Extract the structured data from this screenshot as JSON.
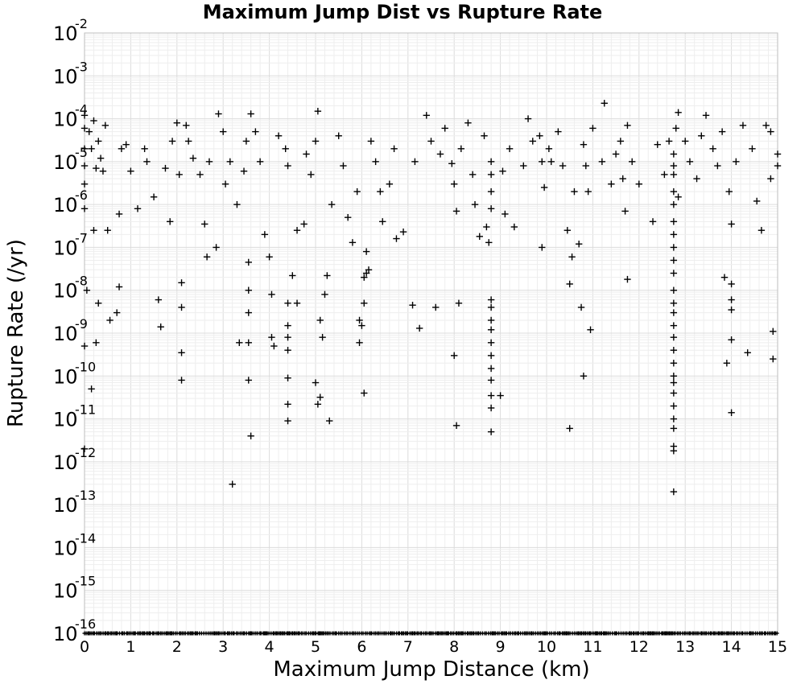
{
  "chart_data": {
    "type": "scatter",
    "title": "Maximum Jump Dist vs Rupture Rate",
    "xlabel": "Maximum Jump Distance (km)",
    "ylabel": "Rupture Rate (/yr)",
    "xlim": [
      0,
      15
    ],
    "ylim": [
      1e-16,
      0.01
    ],
    "yscale": "log",
    "grid": true,
    "marker": "+",
    "marker_color": "#000000",
    "xticks": [
      "0",
      "1",
      "2",
      "3",
      "4",
      "5",
      "6",
      "7",
      "8",
      "9",
      "10",
      "11",
      "12",
      "13",
      "14",
      "15"
    ],
    "yticks": [
      {
        "base": "10",
        "exp": "-2"
      },
      {
        "base": "10",
        "exp": "-3"
      },
      {
        "base": "10",
        "exp": "-4"
      },
      {
        "base": "10",
        "exp": "-5"
      },
      {
        "base": "10",
        "exp": "-6"
      },
      {
        "base": "10",
        "exp": "-7"
      },
      {
        "base": "10",
        "exp": "-8"
      },
      {
        "base": "10",
        "exp": "-9"
      },
      {
        "base": "10",
        "exp": "-10"
      },
      {
        "base": "10",
        "exp": "-11"
      },
      {
        "base": "10",
        "exp": "-12"
      },
      {
        "base": "10",
        "exp": "-13"
      },
      {
        "base": "10",
        "exp": "-14"
      },
      {
        "base": "10",
        "exp": "-15"
      },
      {
        "base": "10",
        "exp": "-16"
      }
    ],
    "series": [
      {
        "points": [
          [
            0.0,
            0.00012
          ],
          [
            0.0,
            6e-05
          ],
          [
            0.0,
            2e-05
          ],
          [
            0.0,
            8e-06
          ],
          [
            0.0,
            3e-06
          ],
          [
            0.0,
            8e-07
          ],
          [
            0.05,
            1e-08
          ],
          [
            0.0,
            5e-10
          ],
          [
            0.0,
            2e-12
          ],
          [
            0.1,
            5e-05
          ],
          [
            0.15,
            2e-05
          ],
          [
            0.2,
            9e-05
          ],
          [
            0.25,
            7e-06
          ],
          [
            0.3,
            3e-05
          ],
          [
            0.35,
            1.2e-05
          ],
          [
            0.4,
            6e-06
          ],
          [
            0.45,
            7e-05
          ],
          [
            0.2,
            2.5e-07
          ],
          [
            0.3,
            5e-09
          ],
          [
            0.5,
            2.5e-07
          ],
          [
            0.25,
            6e-10
          ],
          [
            0.15,
            5e-11
          ],
          [
            0.55,
            2e-09
          ],
          [
            0.7,
            3e-09
          ],
          [
            0.75,
            1.2e-08
          ],
          [
            0.75,
            6e-07
          ],
          [
            0.8,
            2e-05
          ],
          [
            0.9,
            2.5e-05
          ],
          [
            1.0,
            6e-06
          ],
          [
            1.15,
            8e-07
          ],
          [
            1.3,
            2e-05
          ],
          [
            1.35,
            1e-05
          ],
          [
            1.5,
            1.5e-06
          ],
          [
            1.6,
            6e-09
          ],
          [
            1.65,
            1.4e-09
          ],
          [
            1.75,
            7e-06
          ],
          [
            1.85,
            4e-07
          ],
          [
            1.9,
            3e-05
          ],
          [
            2.0,
            8e-05
          ],
          [
            2.05,
            5e-06
          ],
          [
            2.1,
            1.5e-08
          ],
          [
            2.1,
            4e-09
          ],
          [
            2.1,
            3.5e-10
          ],
          [
            2.1,
            8e-11
          ],
          [
            2.2,
            7e-05
          ],
          [
            2.25,
            3e-05
          ],
          [
            2.35,
            1.2e-05
          ],
          [
            2.5,
            5e-06
          ],
          [
            2.6,
            3.5e-07
          ],
          [
            2.65,
            6e-08
          ],
          [
            2.7,
            1e-05
          ],
          [
            2.85,
            1e-07
          ],
          [
            2.9,
            0.00013
          ],
          [
            3.0,
            5e-05
          ],
          [
            3.05,
            3e-06
          ],
          [
            3.15,
            1e-05
          ],
          [
            3.2,
            3e-13
          ],
          [
            3.3,
            1e-06
          ],
          [
            3.35,
            6e-10
          ],
          [
            3.45,
            6e-06
          ],
          [
            3.5,
            3e-05
          ],
          [
            3.55,
            4.5e-08
          ],
          [
            3.55,
            1e-08
          ],
          [
            3.55,
            3e-09
          ],
          [
            3.55,
            6e-10
          ],
          [
            3.55,
            8e-11
          ],
          [
            3.6,
            4e-12
          ],
          [
            3.6,
            0.00013
          ],
          [
            3.7,
            5e-05
          ],
          [
            3.8,
            1e-05
          ],
          [
            3.9,
            2e-07
          ],
          [
            4.0,
            6e-08
          ],
          [
            4.05,
            8e-09
          ],
          [
            4.05,
            8e-10
          ],
          [
            4.1,
            5e-10
          ],
          [
            4.2,
            4e-05
          ],
          [
            4.35,
            2e-05
          ],
          [
            4.4,
            8e-06
          ],
          [
            4.4,
            5e-09
          ],
          [
            4.4,
            1.5e-09
          ],
          [
            4.4,
            8e-10
          ],
          [
            4.4,
            4e-10
          ],
          [
            4.4,
            9e-11
          ],
          [
            4.4,
            2.2e-11
          ],
          [
            4.4,
            9e-12
          ],
          [
            4.5,
            2.2e-08
          ],
          [
            4.6,
            2.5e-07
          ],
          [
            4.6,
            5e-09
          ],
          [
            4.75,
            3.5e-07
          ],
          [
            4.8,
            1.5e-05
          ],
          [
            4.9,
            5e-06
          ],
          [
            5.0,
            3e-05
          ],
          [
            5.05,
            0.00015
          ],
          [
            5.0,
            7e-11
          ],
          [
            5.05,
            2.2e-11
          ],
          [
            5.1,
            3.2e-11
          ],
          [
            5.1,
            2e-09
          ],
          [
            5.15,
            8e-10
          ],
          [
            5.2,
            8e-09
          ],
          [
            5.25,
            2.2e-08
          ],
          [
            5.3,
            9e-12
          ],
          [
            5.35,
            1e-06
          ],
          [
            5.5,
            4e-05
          ],
          [
            5.6,
            8e-06
          ],
          [
            5.7,
            5e-07
          ],
          [
            5.8,
            1.3e-07
          ],
          [
            5.9,
            2e-06
          ],
          [
            5.95,
            6e-10
          ],
          [
            5.95,
            2e-09
          ],
          [
            6.0,
            1.5e-09
          ],
          [
            6.05,
            5e-09
          ],
          [
            6.05,
            2e-08
          ],
          [
            6.1,
            2.5e-08
          ],
          [
            6.05,
            4e-11
          ],
          [
            6.1,
            8e-08
          ],
          [
            6.15,
            3e-08
          ],
          [
            6.2,
            3e-05
          ],
          [
            6.3,
            1e-05
          ],
          [
            6.4,
            2e-06
          ],
          [
            6.45,
            4e-07
          ],
          [
            6.6,
            3e-06
          ],
          [
            6.7,
            2e-05
          ],
          [
            6.75,
            1.6e-07
          ],
          [
            6.9,
            2.3e-07
          ],
          [
            7.1,
            4.5e-09
          ],
          [
            7.15,
            1e-05
          ],
          [
            7.25,
            1.3e-09
          ],
          [
            7.4,
            0.00012
          ],
          [
            7.5,
            3e-05
          ],
          [
            7.6,
            4e-09
          ],
          [
            7.7,
            1.5e-05
          ],
          [
            7.8,
            6e-05
          ],
          [
            7.95,
            9e-06
          ],
          [
            8.0,
            3e-06
          ],
          [
            8.05,
            7e-07
          ],
          [
            8.1,
            5e-09
          ],
          [
            8.0,
            3e-10
          ],
          [
            8.05,
            7e-12
          ],
          [
            8.15,
            2e-05
          ],
          [
            8.3,
            8e-05
          ],
          [
            8.4,
            5e-06
          ],
          [
            8.45,
            1e-06
          ],
          [
            8.55,
            1.8e-07
          ],
          [
            8.65,
            4e-05
          ],
          [
            8.75,
            1.3e-07
          ],
          [
            8.7,
            3e-07
          ],
          [
            8.8,
            1e-05
          ],
          [
            8.8,
            5e-06
          ],
          [
            8.8,
            2e-06
          ],
          [
            8.8,
            8e-07
          ],
          [
            8.8,
            6e-09
          ],
          [
            8.8,
            4e-09
          ],
          [
            8.8,
            2e-09
          ],
          [
            8.8,
            1.2e-09
          ],
          [
            8.8,
            6e-10
          ],
          [
            8.8,
            3e-10
          ],
          [
            8.8,
            1.5e-10
          ],
          [
            8.8,
            8e-11
          ],
          [
            8.8,
            3.5e-11
          ],
          [
            8.8,
            1.8e-11
          ],
          [
            8.8,
            5e-12
          ],
          [
            9.0,
            3.5e-11
          ],
          [
            9.05,
            6e-06
          ],
          [
            9.1,
            6e-07
          ],
          [
            9.2,
            2e-05
          ],
          [
            9.3,
            3e-07
          ],
          [
            9.5,
            8e-06
          ],
          [
            9.6,
            0.0001
          ],
          [
            9.7,
            3e-05
          ],
          [
            9.85,
            4e-05
          ],
          [
            9.9,
            1e-05
          ],
          [
            9.95,
            2.5e-06
          ],
          [
            9.9,
            1e-07
          ],
          [
            10.05,
            2e-05
          ],
          [
            10.1,
            1e-05
          ],
          [
            10.25,
            5e-05
          ],
          [
            10.35,
            8e-06
          ],
          [
            10.45,
            2.5e-07
          ],
          [
            10.5,
            1.4e-08
          ],
          [
            10.55,
            6e-08
          ],
          [
            10.5,
            6e-12
          ],
          [
            10.6,
            2e-06
          ],
          [
            10.7,
            1.2e-07
          ],
          [
            10.75,
            4e-09
          ],
          [
            10.8,
            1e-10
          ],
          [
            10.8,
            2.5e-05
          ],
          [
            10.85,
            8e-06
          ],
          [
            10.9,
            2e-06
          ],
          [
            10.95,
            1.2e-09
          ],
          [
            11.0,
            6e-05
          ],
          [
            11.2,
            1e-05
          ],
          [
            11.25,
            0.00023
          ],
          [
            11.4,
            3e-06
          ],
          [
            11.5,
            1.5e-05
          ],
          [
            11.6,
            3e-05
          ],
          [
            11.65,
            4e-06
          ],
          [
            11.7,
            7e-07
          ],
          [
            11.75,
            1.8e-08
          ],
          [
            11.75,
            7e-05
          ],
          [
            11.85,
            1e-05
          ],
          [
            12.0,
            3e-06
          ],
          [
            12.3,
            4e-07
          ],
          [
            12.4,
            2.5e-05
          ],
          [
            12.55,
            5e-06
          ],
          [
            12.65,
            3e-05
          ],
          [
            12.75,
            1.5e-05
          ],
          [
            12.75,
            8e-06
          ],
          [
            12.75,
            5e-06
          ],
          [
            12.75,
            2e-06
          ],
          [
            12.75,
            1e-06
          ],
          [
            12.75,
            4e-07
          ],
          [
            12.75,
            2e-07
          ],
          [
            12.75,
            1e-07
          ],
          [
            12.75,
            5e-08
          ],
          [
            12.75,
            2.5e-08
          ],
          [
            12.75,
            1e-08
          ],
          [
            12.75,
            5e-09
          ],
          [
            12.75,
            3e-09
          ],
          [
            12.75,
            1.5e-09
          ],
          [
            12.75,
            8e-10
          ],
          [
            12.75,
            4e-10
          ],
          [
            12.75,
            2e-10
          ],
          [
            12.75,
            1e-10
          ],
          [
            12.75,
            7e-11
          ],
          [
            12.75,
            4e-11
          ],
          [
            12.75,
            2e-11
          ],
          [
            12.75,
            1e-11
          ],
          [
            12.75,
            6e-12
          ],
          [
            12.75,
            2.3e-12
          ],
          [
            12.75,
            1.8e-12
          ],
          [
            12.75,
            2e-13
          ],
          [
            12.8,
            6e-05
          ],
          [
            12.85,
            0.00014
          ],
          [
            12.85,
            1.5e-06
          ],
          [
            13.0,
            3e-05
          ],
          [
            13.1,
            1e-05
          ],
          [
            13.25,
            4e-06
          ],
          [
            13.35,
            4e-05
          ],
          [
            13.45,
            0.00012
          ],
          [
            13.6,
            2e-05
          ],
          [
            13.7,
            8e-06
          ],
          [
            13.8,
            5e-05
          ],
          [
            13.85,
            2e-08
          ],
          [
            13.9,
            2e-10
          ],
          [
            13.95,
            2e-06
          ],
          [
            14.0,
            6e-09
          ],
          [
            14.0,
            3.5e-09
          ],
          [
            14.0,
            1.4e-08
          ],
          [
            14.0,
            7e-10
          ],
          [
            14.0,
            1.4e-11
          ],
          [
            14.0,
            3.5e-07
          ],
          [
            14.1,
            1e-05
          ],
          [
            14.25,
            7e-05
          ],
          [
            14.35,
            3.5e-10
          ],
          [
            14.45,
            2e-05
          ],
          [
            14.55,
            1.2e-06
          ],
          [
            14.65,
            2.5e-07
          ],
          [
            14.75,
            7e-05
          ],
          [
            14.85,
            5e-05
          ],
          [
            14.85,
            4e-06
          ],
          [
            14.9,
            1.1e-09
          ],
          [
            14.9,
            2.5e-10
          ],
          [
            15.0,
            1.5e-05
          ],
          [
            15.0,
            8e-06
          ]
        ]
      }
    ],
    "floor_row": {
      "y": 1e-16,
      "x_range": [
        0,
        15
      ],
      "description": "dense marks along y = 1e-16 across the full x range"
    }
  }
}
